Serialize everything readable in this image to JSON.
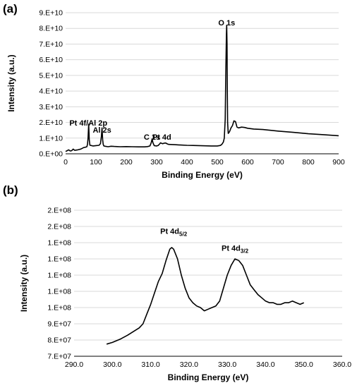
{
  "chart_data": [
    {
      "panel": "(a)",
      "type": "line",
      "xlabel": "Binding Energy (eV)",
      "ylabel": "Intensity (a.u.)",
      "xlim": [
        0,
        900
      ],
      "ylim": [
        0,
        90000000000
      ],
      "x_ticks": [
        "0",
        "100",
        "200",
        "300",
        "400",
        "500",
        "600",
        "700",
        "800",
        "900"
      ],
      "y_ticks": [
        "0.E+00",
        "1.E+10",
        "2.E+10",
        "3.E+10",
        "4.E+10",
        "5.E+10",
        "6.E+10",
        "7.E+10",
        "8.E+10",
        "9.E+10"
      ],
      "grid": "horizontal",
      "annotations": [
        {
          "text": "Pt 4f/Al 2p",
          "x": 75,
          "y": 18000000000
        },
        {
          "text": "Al 2s",
          "x": 120,
          "y": 13500000000
        },
        {
          "text": "C 1s",
          "x": 285,
          "y": 9000000000
        },
        {
          "text": "Pt 4d",
          "x": 317,
          "y": 9000000000
        },
        {
          "text": "O 1s",
          "x": 531,
          "y": 82000000000
        }
      ],
      "series": [
        {
          "x": [
            0,
            5,
            10,
            15,
            20,
            25,
            30,
            40,
            50,
            55,
            60,
            65,
            70,
            72,
            74,
            76,
            78,
            80,
            90,
            100,
            110,
            115,
            118,
            120,
            122,
            124,
            126,
            130,
            140,
            150,
            160,
            170,
            180,
            200,
            220,
            240,
            260,
            270,
            278,
            282,
            285,
            288,
            292,
            300,
            305,
            310,
            313,
            317,
            320,
            325,
            330,
            335,
            340,
            360,
            380,
            400,
            420,
            440,
            460,
            480,
            500,
            510,
            515,
            520,
            523,
            526,
            528,
            530,
            531,
            532,
            533,
            534,
            536,
            540,
            545,
            550,
            555,
            560,
            565,
            570,
            580,
            590,
            600,
            620,
            650,
            700,
            750,
            800,
            850,
            900
          ],
          "y": [
            1500000000,
            2000000000,
            2500000000,
            1800000000,
            2000000000,
            3000000000,
            2200000000,
            2500000000,
            3000000000,
            3500000000,
            4000000000,
            4200000000,
            4500000000,
            6000000000,
            10000000000,
            19000000000,
            9000000000,
            5500000000,
            5000000000,
            5200000000,
            5400000000,
            6500000000,
            11000000000,
            16500000000,
            9000000000,
            6000000000,
            5000000000,
            4800000000,
            4500000000,
            4800000000,
            4700000000,
            4600000000,
            4500000000,
            4600000000,
            4500000000,
            4400000000,
            4400000000,
            4600000000,
            5000000000,
            7000000000,
            9500000000,
            7000000000,
            5200000000,
            5000000000,
            5300000000,
            6300000000,
            7000000000,
            6600000000,
            6400000000,
            6800000000,
            6900000000,
            6300000000,
            6000000000,
            5800000000,
            5600000000,
            5400000000,
            5300000000,
            5200000000,
            5100000000,
            5000000000,
            5000000000,
            5300000000,
            6000000000,
            7500000000,
            10000000000,
            22000000000,
            50000000000,
            76000000000,
            82000000000,
            70000000000,
            40000000000,
            20000000000,
            13000000000,
            14000000000,
            16500000000,
            18000000000,
            21000000000,
            20500000000,
            17000000000,
            16500000000,
            17000000000,
            16800000000,
            16300000000,
            15800000000,
            15500000000,
            14500000000,
            13700000000,
            12800000000,
            12200000000,
            11500000000
          ]
        }
      ]
    },
    {
      "panel": "(b)",
      "type": "line",
      "xlabel": "Binding Energy (eV)",
      "ylabel": "Intensity (a.u.)",
      "xlim": [
        290,
        360
      ],
      "ylim": [
        0,
        9
      ],
      "x_ticks": [
        "290.0",
        "300.0",
        "310.0",
        "320.0",
        "330.0",
        "340.0",
        "350.0",
        "360.0"
      ],
      "y_ticks": [
        "7.E+07",
        "8.E+07",
        "9.E+07",
        "1.E+08",
        "1.E+08",
        "1.E+08",
        "1.E+08",
        "1.E+08",
        "2.E+08",
        "2.E+08"
      ],
      "grid": "horizontal",
      "annotations": [
        {
          "text": "Pt 4d",
          "sub": "5/2",
          "x": 316,
          "y": 7.55
        },
        {
          "text": "Pt 4d",
          "sub": "3/2",
          "x": 332,
          "y": 6.5
        }
      ],
      "series": [
        {
          "x": [
            298.5,
            300,
            302,
            304,
            306,
            307,
            308,
            309,
            310,
            311,
            312,
            313,
            314,
            315,
            315.5,
            316,
            317,
            318,
            319,
            320,
            321,
            322,
            323,
            324,
            325,
            326,
            327,
            328,
            329,
            330,
            331,
            332,
            333,
            334,
            335,
            336,
            337,
            338,
            339,
            340,
            341,
            342,
            343,
            344,
            345,
            346,
            347,
            348,
            349,
            350
          ],
          "y": [
            0.75,
            0.85,
            1.05,
            1.3,
            1.6,
            1.75,
            2.0,
            2.6,
            3.2,
            3.9,
            4.6,
            5.1,
            5.9,
            6.6,
            6.7,
            6.6,
            6.0,
            5.0,
            4.2,
            3.6,
            3.3,
            3.1,
            3.0,
            2.8,
            2.9,
            3.0,
            3.1,
            3.4,
            4.2,
            5.0,
            5.6,
            6.0,
            5.9,
            5.6,
            5.0,
            4.4,
            4.1,
            3.8,
            3.6,
            3.4,
            3.3,
            3.3,
            3.2,
            3.2,
            3.3,
            3.3,
            3.4,
            3.3,
            3.2,
            3.3
          ]
        }
      ]
    }
  ]
}
